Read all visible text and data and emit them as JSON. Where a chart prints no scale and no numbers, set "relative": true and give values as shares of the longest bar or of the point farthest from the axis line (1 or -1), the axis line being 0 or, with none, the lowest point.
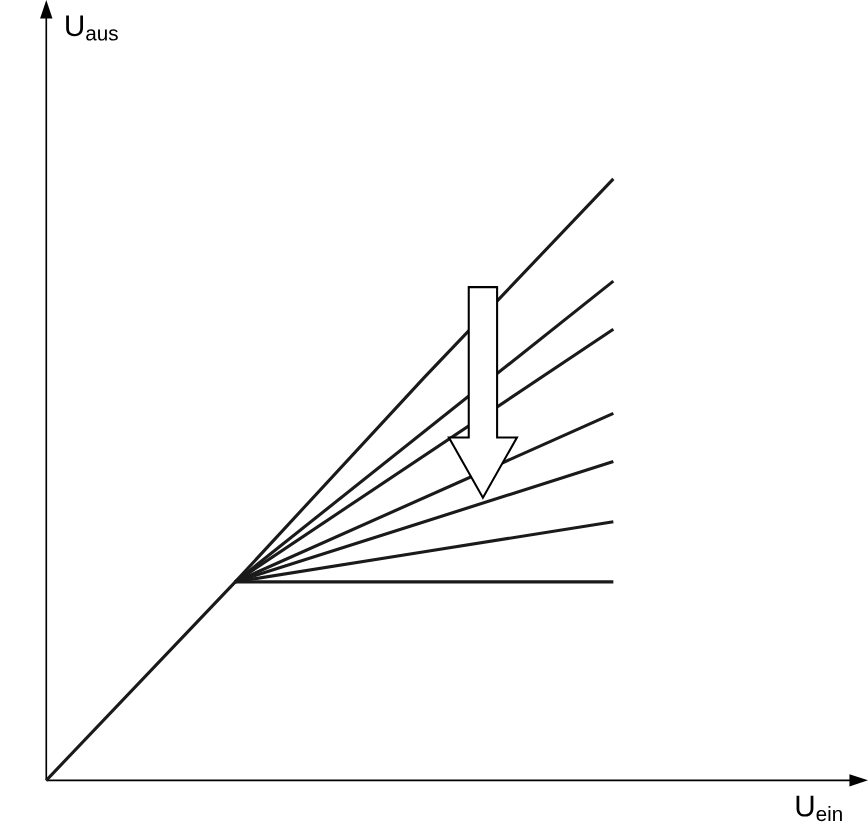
{
  "chart_data": {
    "type": "line",
    "relative": true,
    "xlabel": "U$_{ein}$",
    "ylabel": "U$_{aus}$",
    "categories": [
      null,
      null,
      null,
      null
    ],
    "series": [
      {
        "color": "#1a1a1a",
        "values": [
          0,
          0.33,
          0.67,
          1
        ]
      },
      {
        "color": "#1a1a1a",
        "values": [
          null,
          0.33,
          0.58,
          0.83
        ]
      },
      {
        "color": "#1a1a1a",
        "values": [
          null,
          0.33,
          0.54,
          0.75
        ]
      },
      {
        "color": "#1a1a1a",
        "values": [
          null,
          0.33,
          0.47,
          0.61
        ]
      },
      {
        "color": "#1a1a1a",
        "values": [
          null,
          0.33,
          0.43,
          0.53
        ]
      },
      {
        "color": "#1a1a1a",
        "values": [
          null,
          0.33,
          0.38,
          0.43
        ]
      },
      {
        "color": "#1a1a1a",
        "values": [
          null,
          0.33,
          0.33,
          0.33
        ]
      }
    ]
  }
}
